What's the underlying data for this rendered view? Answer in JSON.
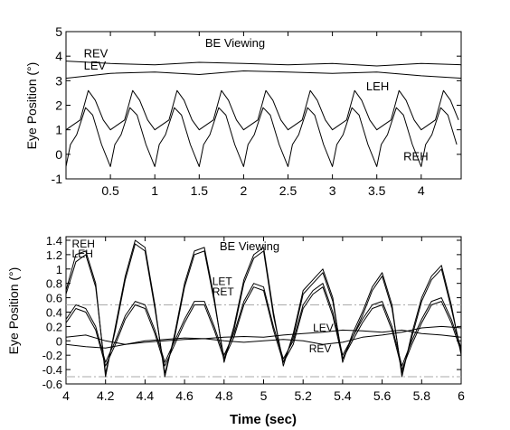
{
  "chart_data": [
    {
      "type": "line",
      "title": "BE Viewing",
      "xlabel": "",
      "ylabel": "Eye Position (°)",
      "xlim": [
        0.0,
        4.45
      ],
      "ylim": [
        -1,
        5
      ],
      "xticks": [
        0.5,
        1,
        1.5,
        2,
        2.5,
        3,
        3.5,
        4
      ],
      "xtick_labels": [
        "0.5",
        "1",
        "1.5",
        "2",
        "2.5",
        "3",
        "3.5",
        "4"
      ],
      "yticks": [
        -1,
        0,
        1,
        2,
        3,
        4,
        5
      ],
      "ytick_labels": [
        "-1",
        "0",
        "1",
        "2",
        "3",
        "4",
        "5"
      ],
      "grid": false,
      "legend": "none (inline labels)",
      "series": [
        {
          "name": "REV",
          "label_at": [
            0.2,
            3.95
          ],
          "period": 0,
          "x": [
            0,
            0.5,
            1,
            1.5,
            2,
            2.5,
            3,
            3.5,
            4,
            4.45
          ],
          "values": [
            3.8,
            3.7,
            3.65,
            3.75,
            3.7,
            3.65,
            3.7,
            3.6,
            3.7,
            3.65
          ]
        },
        {
          "name": "LEV",
          "label_at": [
            0.2,
            3.45
          ],
          "period": 0,
          "x": [
            0,
            0.5,
            1,
            1.5,
            2,
            2.5,
            3,
            3.5,
            4,
            4.45
          ],
          "values": [
            3.1,
            3.3,
            3.35,
            3.25,
            3.4,
            3.35,
            3.3,
            3.35,
            3.2,
            3.1
          ]
        },
        {
          "name": "LEH",
          "label_at": [
            3.38,
            2.6
          ],
          "period": 0.5,
          "x": [
            0.0,
            0.08,
            0.16,
            0.25,
            0.33,
            0.42,
            0.5
          ],
          "values": [
            1.0,
            1.2,
            1.4,
            2.6,
            2.2,
            1.4,
            1.0
          ]
        },
        {
          "name": "REH",
          "label_at": [
            3.8,
            -0.25
          ],
          "period": 0.5,
          "x": [
            0.0,
            0.05,
            0.12,
            0.22,
            0.3,
            0.4,
            0.5
          ],
          "values": [
            -0.5,
            0.4,
            0.8,
            1.9,
            1.6,
            0.4,
            -0.5
          ]
        }
      ],
      "x0": 0.0,
      "x1": 4.45
    },
    {
      "type": "line",
      "title": "BE Viewing",
      "xlabel": "Time (sec)",
      "ylabel": "Eye Position (°)",
      "xlim": [
        4,
        6
      ],
      "ylim": [
        -0.6,
        1.45
      ],
      "xticks": [
        4,
        4.2,
        4.4,
        4.6,
        4.8,
        5,
        5.2,
        5.4,
        5.6,
        5.8,
        6
      ],
      "xtick_labels": [
        "4",
        "4.2",
        "4.4",
        "4.6",
        "4.8",
        "5",
        "5.2",
        "5.4",
        "5.6",
        "5.8",
        "6"
      ],
      "yticks": [
        -0.6,
        -0.4,
        -0.2,
        0,
        0.2,
        0.4,
        0.6,
        0.8,
        1,
        1.2,
        1.4
      ],
      "ytick_labels": [
        "-0.6",
        "-0.4",
        "-0.2",
        "0",
        "0.2",
        "0.4",
        "0.6",
        "0.8",
        "1",
        "1.2",
        "1.4"
      ],
      "grid": false,
      "reference_lines": [
        0.5,
        -0.5
      ],
      "legend": "none (inline labels)",
      "series": [
        {
          "name": "REH",
          "label_at": [
            4.03,
            1.3
          ],
          "x": [
            4.0,
            4.05,
            4.1,
            4.15,
            4.2,
            4.25,
            4.3,
            4.35,
            4.4,
            4.45,
            4.5,
            4.55,
            4.6,
            4.65,
            4.7,
            4.75,
            4.8,
            4.85,
            4.9,
            4.95,
            5.0,
            5.05,
            5.1,
            5.15,
            5.2,
            5.25,
            5.3,
            5.35,
            5.4,
            5.45,
            5.5,
            5.55,
            5.6,
            5.65,
            5.7,
            5.75,
            5.8,
            5.85,
            5.9,
            5.95,
            6.0
          ],
          "values": [
            0.7,
            1.2,
            1.25,
            0.8,
            -0.5,
            0.2,
            0.9,
            1.4,
            1.3,
            0.5,
            -0.5,
            0.1,
            0.8,
            1.25,
            1.3,
            0.6,
            -0.3,
            0.2,
            0.85,
            1.2,
            1.3,
            0.4,
            -0.35,
            0.1,
            0.7,
            0.85,
            1.0,
            0.6,
            -0.3,
            0.1,
            0.4,
            0.75,
            0.95,
            0.5,
            -0.5,
            0.1,
            0.6,
            0.9,
            1.05,
            0.5,
            -0.2
          ]
        },
        {
          "name": "LEH",
          "label_at": [
            4.03,
            1.16
          ],
          "x": [
            4.0,
            4.05,
            4.1,
            4.15,
            4.2,
            4.25,
            4.3,
            4.35,
            4.4,
            4.45,
            4.5,
            4.55,
            4.6,
            4.65,
            4.7,
            4.75,
            4.8,
            4.85,
            4.9,
            4.95,
            5.0,
            5.05,
            5.1,
            5.15,
            5.2,
            5.25,
            5.3,
            5.35,
            5.4,
            5.45,
            5.5,
            5.55,
            5.6,
            5.65,
            5.7,
            5.75,
            5.8,
            5.85,
            5.9,
            5.95,
            6.0
          ],
          "values": [
            0.65,
            1.1,
            1.2,
            0.75,
            -0.45,
            0.15,
            0.85,
            1.35,
            1.25,
            0.45,
            -0.45,
            0.05,
            0.75,
            1.2,
            1.25,
            0.55,
            -0.25,
            0.15,
            0.8,
            1.15,
            1.25,
            0.35,
            -0.3,
            0.05,
            0.65,
            0.8,
            0.95,
            0.55,
            -0.25,
            0.05,
            0.35,
            0.7,
            0.9,
            0.45,
            -0.45,
            0.05,
            0.55,
            0.85,
            1.0,
            0.45,
            -0.15
          ]
        },
        {
          "name": "LET",
          "label_at": [
            4.74,
            0.78
          ],
          "x": [
            4.0,
            4.05,
            4.1,
            4.15,
            4.2,
            4.25,
            4.3,
            4.35,
            4.4,
            4.45,
            4.5,
            4.55,
            4.6,
            4.65,
            4.7,
            4.75,
            4.8,
            4.85,
            4.9,
            4.95,
            5.0,
            5.05,
            5.1,
            5.15,
            5.2,
            5.25,
            5.3,
            5.35,
            5.4,
            5.45,
            5.5,
            5.55,
            5.6,
            5.65,
            5.7,
            5.75,
            5.8,
            5.85,
            5.9,
            5.95,
            6.0
          ],
          "values": [
            0.3,
            0.5,
            0.45,
            0.2,
            -0.3,
            0.0,
            0.35,
            0.55,
            0.5,
            0.15,
            -0.3,
            0.0,
            0.3,
            0.55,
            0.55,
            0.2,
            -0.2,
            0.1,
            0.55,
            0.8,
            0.75,
            0.2,
            -0.25,
            0.0,
            0.5,
            0.7,
            0.8,
            0.4,
            -0.2,
            0.05,
            0.3,
            0.5,
            0.55,
            0.2,
            -0.35,
            0.0,
            0.3,
            0.55,
            0.6,
            0.3,
            -0.1
          ]
        },
        {
          "name": "RET",
          "label_at": [
            4.74,
            0.63
          ],
          "x": [
            4.0,
            4.05,
            4.1,
            4.15,
            4.2,
            4.25,
            4.3,
            4.35,
            4.4,
            4.45,
            4.5,
            4.55,
            4.6,
            4.65,
            4.7,
            4.75,
            4.8,
            4.85,
            4.9,
            4.95,
            5.0,
            5.05,
            5.1,
            5.15,
            5.2,
            5.25,
            5.3,
            5.35,
            5.4,
            5.45,
            5.5,
            5.55,
            5.6,
            5.65,
            5.7,
            5.75,
            5.8,
            5.85,
            5.9,
            5.95,
            6.0
          ],
          "values": [
            0.25,
            0.45,
            0.4,
            0.15,
            -0.35,
            -0.05,
            0.3,
            0.5,
            0.45,
            0.1,
            -0.35,
            -0.05,
            0.25,
            0.5,
            0.5,
            0.15,
            -0.25,
            0.05,
            0.5,
            0.75,
            0.7,
            0.15,
            -0.3,
            -0.05,
            0.45,
            0.65,
            0.75,
            0.35,
            -0.25,
            0.0,
            0.25,
            0.45,
            0.5,
            0.15,
            -0.4,
            -0.05,
            0.25,
            0.5,
            0.55,
            0.25,
            -0.15
          ]
        },
        {
          "name": "LEV",
          "label_at": [
            5.25,
            0.13
          ],
          "x": [
            4.0,
            4.1,
            4.2,
            4.3,
            4.4,
            4.5,
            4.6,
            4.7,
            4.8,
            4.9,
            5.0,
            5.1,
            5.2,
            5.3,
            5.4,
            5.5,
            5.6,
            5.7,
            5.8,
            5.9,
            6.0
          ],
          "values": [
            -0.05,
            -0.08,
            -0.1,
            -0.05,
            0.0,
            0.02,
            0.04,
            0.03,
            0.05,
            0.06,
            0.05,
            0.08,
            0.1,
            0.12,
            0.15,
            0.14,
            0.12,
            0.15,
            0.1,
            0.08,
            0.05
          ]
        },
        {
          "name": "REV",
          "label_at": [
            5.23,
            -0.16
          ],
          "x": [
            4.0,
            4.1,
            4.2,
            4.3,
            4.4,
            4.5,
            4.6,
            4.7,
            4.8,
            4.9,
            5.0,
            5.1,
            5.2,
            5.3,
            5.4,
            5.5,
            5.6,
            5.7,
            5.8,
            5.9,
            6.0
          ],
          "values": [
            0.05,
            0.08,
            0.0,
            -0.05,
            -0.02,
            0.0,
            0.02,
            0.03,
            0.0,
            -0.02,
            0.0,
            0.02,
            0.0,
            -0.05,
            -0.02,
            0.05,
            0.08,
            0.12,
            0.18,
            0.2,
            0.18
          ]
        }
      ]
    }
  ]
}
